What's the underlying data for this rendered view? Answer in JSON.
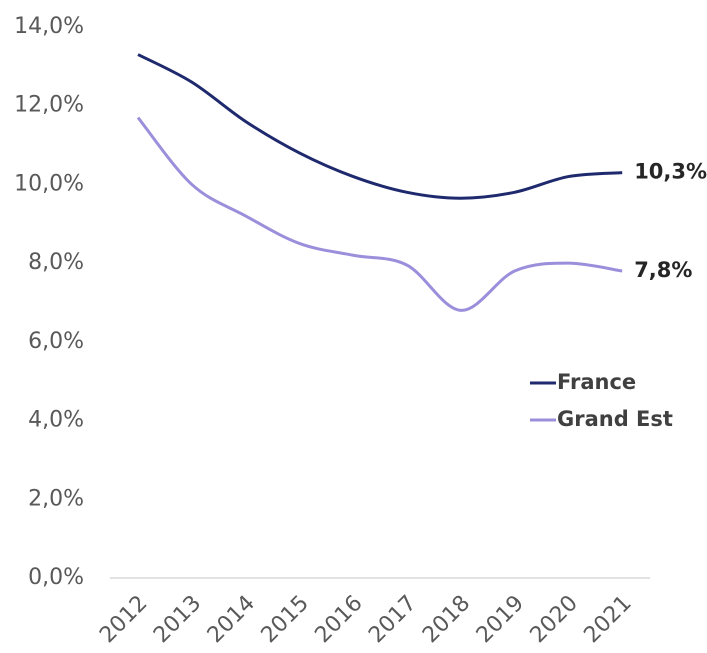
{
  "chart_data": {
    "type": "line",
    "categories": [
      "2012",
      "2013",
      "2014",
      "2015",
      "2016",
      "2017",
      "2018",
      "2019",
      "2020",
      "2021"
    ],
    "series": [
      {
        "name": "France",
        "color": "#1f2a6e",
        "values": [
          13.3,
          12.6,
          11.6,
          10.8,
          10.2,
          9.8,
          9.65,
          9.8,
          10.2,
          10.3
        ],
        "value_labels": [
          null,
          null,
          null,
          null,
          null,
          null,
          null,
          null,
          null,
          "10,3%"
        ]
      },
      {
        "name": "Grand Est",
        "color": "#9b8fdc",
        "values": [
          11.7,
          10.0,
          9.2,
          8.5,
          8.2,
          7.95,
          6.8,
          7.8,
          8.0,
          7.8
        ],
        "value_labels": [
          null,
          null,
          null,
          null,
          null,
          null,
          null,
          null,
          null,
          "7,8%"
        ]
      }
    ],
    "ylim": [
      0,
      14
    ],
    "yticks": [
      {
        "value": 0,
        "label": "0,0%"
      },
      {
        "value": 2,
        "label": "2,0%"
      },
      {
        "value": 4,
        "label": "4,0%"
      },
      {
        "value": 6,
        "label": "6,0%"
      },
      {
        "value": 8,
        "label": "8,0%"
      },
      {
        "value": 10,
        "label": "10,0%"
      },
      {
        "value": 12,
        "label": "12,0%"
      },
      {
        "value": 14,
        "label": "14,0%"
      }
    ],
    "grid": false,
    "legend": "right"
  }
}
